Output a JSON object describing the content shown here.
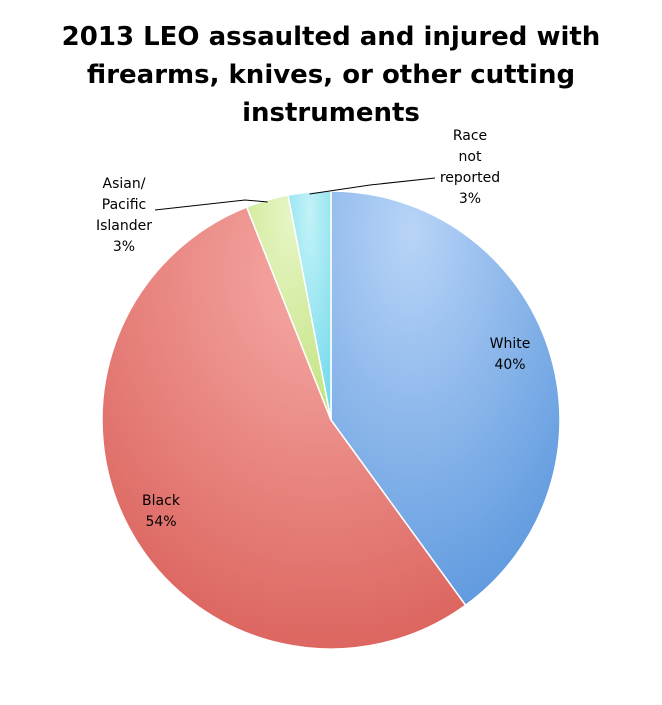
{
  "chart_data": {
    "type": "pie",
    "title_lines": [
      "2013 LEO assaulted and injured with",
      "firearms, knives, or other cutting",
      "instruments"
    ],
    "slices": [
      {
        "label_lines": [
          "White"
        ],
        "value_text": "40%",
        "value": 40,
        "color": "#7aabe8"
      },
      {
        "label_lines": [
          "Black"
        ],
        "value_text": "54%",
        "value": 54,
        "color": "#e0706a"
      },
      {
        "label_lines": [
          "Asian/",
          "Pacific",
          "Islander"
        ],
        "value_text": "3%",
        "value": 3,
        "color": "#d2eb9a"
      },
      {
        "label_lines": [
          "Race",
          "not",
          "reported"
        ],
        "value_text": "3%",
        "value": 3,
        "color": "#8ee4f0"
      }
    ],
    "legend": "none"
  }
}
